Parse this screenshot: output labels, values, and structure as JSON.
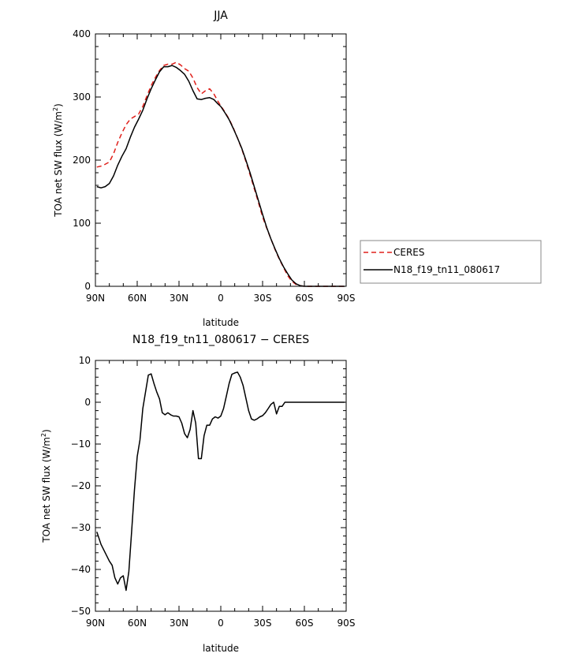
{
  "chart_data": [
    {
      "type": "line",
      "title": "JJA",
      "xlabel": "latitude",
      "ylabel": "TOA net SW flux (W/m²)",
      "ylabel_main": "TOA net SW flux (W/m",
      "ylabel_sup": "2",
      "ylabel_close": ")",
      "xlim": [
        90,
        -90
      ],
      "ylim": [
        0,
        400
      ],
      "xticks": [
        90,
        60,
        30,
        0,
        -30,
        -60,
        -90
      ],
      "xtick_labels": [
        "90N",
        "60N",
        "30N",
        "0",
        "30S",
        "60S",
        "90S"
      ],
      "yticks": [
        0,
        100,
        200,
        300,
        400
      ],
      "ytick_labels": [
        "0",
        "100",
        "200",
        "300",
        "400"
      ],
      "legend": "right",
      "series": [
        {
          "name": "CERES",
          "color": "#e0201b",
          "dash": "dashed",
          "x": [
            89,
            85,
            80,
            77,
            74,
            71,
            68,
            65,
            62,
            59,
            56,
            53,
            50,
            47,
            44,
            41,
            38,
            35,
            32,
            29,
            26,
            23,
            20,
            17,
            14,
            11,
            8,
            5,
            2,
            0,
            -3,
            -6,
            -9,
            -12,
            -15,
            -18,
            -21,
            -24,
            -27,
            -30,
            -33,
            -36,
            -39,
            -42,
            -45,
            -48,
            -51,
            -54,
            -57,
            -60,
            -63,
            -66,
            -69,
            -72,
            -75,
            -78,
            -81,
            -84,
            -87,
            -89
          ],
          "y": [
            189,
            191,
            197,
            210,
            228,
            243,
            256,
            265,
            269,
            273,
            285,
            302,
            318,
            331,
            342,
            350,
            352,
            352,
            355,
            351,
            345,
            341,
            330,
            315,
            305,
            310,
            313,
            305,
            293,
            286,
            276,
            265,
            251,
            235,
            218,
            198,
            177,
            155,
            133,
            110,
            92,
            75,
            58,
            43,
            30,
            17,
            8,
            3,
            1,
            0,
            0,
            0,
            0,
            0,
            0,
            0,
            0,
            0,
            0,
            0
          ]
        },
        {
          "name": "N18_f19_tn11_080617",
          "color": "#000000",
          "dash": "solid",
          "x": [
            89,
            86,
            83,
            80,
            77,
            74,
            71,
            68,
            65,
            62,
            59,
            56,
            53,
            50,
            47,
            44,
            41,
            38,
            35,
            32,
            29,
            26,
            23,
            20,
            17,
            14,
            11,
            8,
            5,
            2,
            0,
            -3,
            -6,
            -9,
            -12,
            -15,
            -18,
            -21,
            -24,
            -27,
            -30,
            -33,
            -36,
            -39,
            -42,
            -45,
            -48,
            -51,
            -54,
            -57,
            -60,
            -63,
            -66,
            -69,
            -72,
            -75,
            -78,
            -81,
            -84,
            -87,
            -89
          ],
          "y": [
            158,
            156,
            158,
            163,
            175,
            192,
            206,
            218,
            236,
            252,
            265,
            279,
            297,
            313,
            327,
            340,
            348,
            348,
            350,
            347,
            342,
            336,
            325,
            310,
            297,
            296,
            298,
            299,
            296,
            289,
            285,
            275,
            264,
            250,
            235,
            219,
            200,
            180,
            158,
            136,
            114,
            93,
            75,
            59,
            44,
            31,
            20,
            10,
            4,
            1,
            0,
            0,
            0,
            0,
            0,
            0,
            0,
            0,
            0,
            0,
            0
          ]
        }
      ]
    },
    {
      "type": "line",
      "title": "N18_f19_tn11_080617 − CERES",
      "xlabel": "latitude",
      "ylabel": "TOA net SW flux (W/m²)",
      "ylabel_main": "TOA net SW flux (W/m",
      "ylabel_sup": "2",
      "ylabel_close": ")",
      "xlim": [
        90,
        -90
      ],
      "ylim": [
        -50,
        10
      ],
      "xticks": [
        90,
        60,
        30,
        0,
        -30,
        -60,
        -90
      ],
      "xtick_labels": [
        "90N",
        "60N",
        "30N",
        "0",
        "30S",
        "60S",
        "90S"
      ],
      "yticks": [
        -50,
        -40,
        -30,
        -20,
        -10,
        0,
        10
      ],
      "ytick_labels": [
        "−50",
        "−40",
        "−30",
        "−20",
        "−10",
        "0",
        "10"
      ],
      "series": [
        {
          "color": "#000000",
          "dash": "solid",
          "x": [
            89,
            86,
            83,
            80,
            78,
            76,
            74,
            72,
            70,
            68,
            66,
            64,
            62,
            60,
            58,
            56,
            54,
            52,
            50,
            48,
            46,
            44,
            42,
            40,
            38,
            36,
            34,
            32,
            30,
            28,
            26,
            24,
            22,
            20,
            18,
            16,
            14,
            12,
            10,
            8,
            6,
            4,
            2,
            0,
            -2,
            -4,
            -6,
            -8,
            -10,
            -12,
            -14,
            -16,
            -18,
            -20,
            -22,
            -24,
            -26,
            -28,
            -30,
            -32,
            -34,
            -36,
            -38,
            -40,
            -42,
            -44,
            -46,
            -48,
            -50,
            -52,
            -54,
            -56,
            -58,
            -60,
            -62,
            -64,
            -66,
            -68,
            -70,
            -72,
            -74,
            -76,
            -78,
            -80,
            -85,
            -89
          ],
          "y": [
            -31,
            -34,
            -36,
            -38,
            -39,
            -42,
            -43.5,
            -42,
            -41.5,
            -45,
            -40.5,
            -31,
            -21,
            -13,
            -9,
            -1.5,
            2.5,
            6.5,
            6.8,
            4.5,
            2.5,
            0.8,
            -2.5,
            -3,
            -2.5,
            -3,
            -3.3,
            -3.3,
            -3.5,
            -5,
            -7.5,
            -8.5,
            -6.5,
            -2,
            -5,
            -13.5,
            -13.5,
            -8,
            -5.5,
            -5.5,
            -4,
            -3.5,
            -3.8,
            -3.3,
            -1.5,
            1.5,
            4.5,
            6.7,
            7,
            7.2,
            6,
            4,
            1,
            -2,
            -4,
            -4.3,
            -4,
            -3.5,
            -3.2,
            -2.5,
            -1.5,
            -0.5,
            0,
            -2.8,
            -1,
            -1,
            0,
            0,
            0,
            0,
            0,
            0,
            0,
            0,
            0,
            0,
            0,
            0,
            0,
            0,
            0,
            0,
            0,
            0,
            0,
            0
          ]
        }
      ]
    }
  ]
}
